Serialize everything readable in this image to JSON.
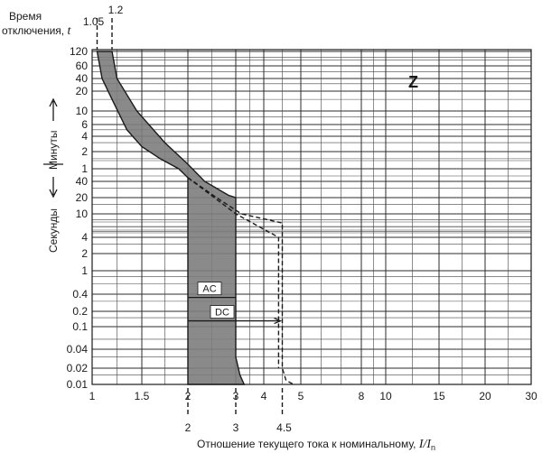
{
  "chart_data": {
    "type": "line",
    "curve_label": "Z",
    "y_title_line1": "Время",
    "y_title_line2": "отключения, ",
    "y_title_var": "t",
    "y_minutes_label": "Минуты",
    "y_seconds_label": "Секунды",
    "x_title_text": "Отношение текущего тока к номинальному, ",
    "x_title_var": "I/I",
    "x_title_sub": "n",
    "x_ticks": [
      {
        "label": "1",
        "value": 1
      },
      {
        "label": "1.5",
        "value": 1.5
      },
      {
        "label": "2",
        "value": 2
      },
      {
        "label": "3",
        "value": 3
      },
      {
        "label": "4",
        "value": 4
      },
      {
        "label": "5",
        "value": 5
      },
      {
        "label": "8",
        "value": 8
      },
      {
        "label": "10",
        "value": 10
      },
      {
        "label": "15",
        "value": 15
      },
      {
        "label": "20",
        "value": 20
      },
      {
        "label": "30",
        "value": 30
      }
    ],
    "x_top_markers": [
      {
        "label": "1.05",
        "value": 1.05
      },
      {
        "label": "1.2",
        "value": 1.2
      }
    ],
    "x_bottom_markers": [
      {
        "label": "2",
        "value": 2
      },
      {
        "label": "3",
        "value": 3
      },
      {
        "label": "4.5",
        "value": 4.5
      }
    ],
    "y_ticks_minutes": [
      {
        "label": "120",
        "seconds": 7200
      },
      {
        "label": "60",
        "seconds": 3600
      },
      {
        "label": "40",
        "seconds": 2400
      },
      {
        "label": "20",
        "seconds": 1200
      },
      {
        "label": "10",
        "seconds": 600
      },
      {
        "label": "6",
        "seconds": 360
      },
      {
        "label": "4",
        "seconds": 240
      },
      {
        "label": "2",
        "seconds": 120
      },
      {
        "label": "1",
        "seconds": 60
      }
    ],
    "y_ticks_seconds": [
      {
        "label": "40",
        "seconds": 40
      },
      {
        "label": "20",
        "seconds": 20
      },
      {
        "label": "10",
        "seconds": 10
      },
      {
        "label": "4",
        "seconds": 4
      },
      {
        "label": "2",
        "seconds": 2
      },
      {
        "label": "1",
        "seconds": 1
      },
      {
        "label": "0.4",
        "seconds": 0.4
      },
      {
        "label": "0.2",
        "seconds": 0.2
      },
      {
        "label": "0.1",
        "seconds": 0.1
      },
      {
        "label": "0.04",
        "seconds": 0.04
      },
      {
        "label": "0.02",
        "seconds": 0.02
      },
      {
        "label": "0.01",
        "seconds": 0.01
      }
    ],
    "y_range_seconds": [
      0.01,
      7200
    ],
    "x_range": [
      1,
      30
    ],
    "trip_band": {
      "left_boundary": [
        {
          "x": 1.05,
          "t": 7200
        },
        {
          "x": 1.1,
          "t": 2400
        },
        {
          "x": 1.2,
          "t": 900
        },
        {
          "x": 1.35,
          "t": 300
        },
        {
          "x": 1.5,
          "t": 150
        },
        {
          "x": 1.7,
          "t": 90
        },
        {
          "x": 1.9,
          "t": 60
        },
        {
          "x": 2.0,
          "t": 45
        },
        {
          "x": 2.0,
          "t": 0.01
        }
      ],
      "right_boundary": [
        {
          "x": 1.2,
          "t": 7200
        },
        {
          "x": 1.25,
          "t": 2400
        },
        {
          "x": 1.45,
          "t": 600
        },
        {
          "x": 1.75,
          "t": 180
        },
        {
          "x": 2.0,
          "t": 72
        },
        {
          "x": 2.35,
          "t": 40
        },
        {
          "x": 2.85,
          "t": 22
        },
        {
          "x": 3.0,
          "t": 20
        },
        {
          "x": 3.0,
          "t": 0.03
        },
        {
          "x": 3.15,
          "t": 0.015
        },
        {
          "x": 3.3,
          "t": 0.01
        }
      ]
    },
    "dc_band_dashed": [
      {
        "x": 2.0,
        "t": 45
      },
      {
        "x": 2.6,
        "t": 20
      },
      {
        "x": 3.2,
        "t": 10
      },
      {
        "x": 4.5,
        "t": 7
      },
      {
        "x": 4.5,
        "t": 0.02
      },
      {
        "x": 4.6,
        "t": 0.012
      },
      {
        "x": 4.8,
        "t": 0.01
      }
    ],
    "dc_left_dashed": [
      {
        "x": 2.0,
        "t": 45
      },
      {
        "x": 3.0,
        "t": 10
      },
      {
        "x": 4.4,
        "t": 4
      },
      {
        "x": 4.4,
        "t": 0.02
      }
    ],
    "ac_label": "AC",
    "dc_label": "DC",
    "ac_t": 0.35,
    "dc_t": 0.13,
    "dc_arrow_x": 4.5
  }
}
